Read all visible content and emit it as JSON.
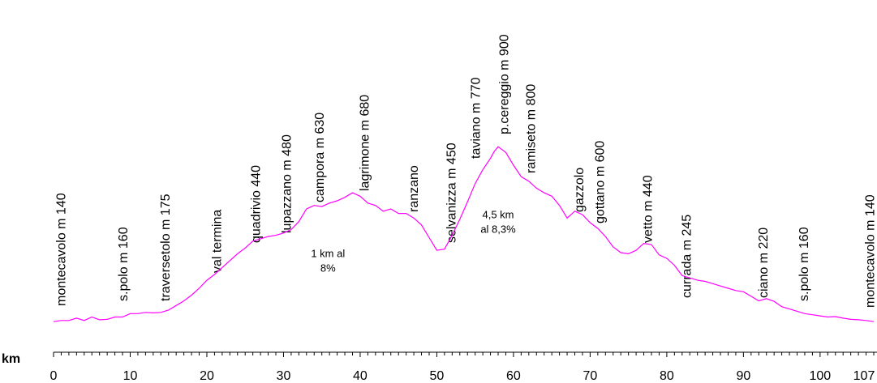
{
  "chart_data": {
    "type": "line",
    "x_unit_label": "km",
    "x_ticks": [
      0,
      10,
      20,
      30,
      40,
      50,
      60,
      70,
      80,
      90,
      100,
      107
    ],
    "xlim": [
      0,
      107
    ],
    "ylim": [
      0,
      1000
    ],
    "grid": false,
    "line_color": "#ff00ff",
    "series": [
      {
        "x": [
          0,
          1,
          2,
          3,
          4,
          5,
          6,
          7,
          8,
          9,
          10,
          11,
          12,
          13,
          14,
          15,
          16,
          17,
          18,
          19,
          20,
          21,
          22,
          23,
          24,
          25,
          26,
          27,
          28,
          29,
          30,
          31,
          32,
          33,
          34,
          35,
          36,
          37,
          38,
          39,
          40,
          41,
          42,
          43,
          44,
          45,
          46,
          47,
          48,
          49,
          50,
          51,
          52,
          53,
          54,
          55,
          56,
          57,
          57.5,
          58,
          59,
          60,
          61,
          62,
          63,
          64,
          65,
          66,
          67,
          68,
          69,
          70,
          71,
          72,
          73,
          74,
          75,
          76,
          77,
          78,
          79,
          80,
          81,
          82,
          83,
          84,
          85,
          86,
          87,
          88,
          89,
          90,
          91,
          92,
          93,
          94,
          95,
          96,
          97,
          98,
          99,
          100,
          101,
          102,
          103,
          104,
          105,
          106,
          107
        ],
        "y": [
          140,
          145,
          145,
          155,
          145,
          160,
          148,
          150,
          160,
          160,
          175,
          175,
          180,
          178,
          180,
          190,
          210,
          230,
          255,
          285,
          320,
          345,
          375,
          405,
          435,
          460,
          490,
          500,
          510,
          515,
          525,
          540,
          575,
          630,
          645,
          640,
          655,
          665,
          680,
          700,
          685,
          655,
          645,
          620,
          630,
          610,
          610,
          590,
          560,
          505,
          450,
          455,
          515,
          585,
          660,
          740,
          800,
          850,
          880,
          900,
          875,
          820,
          770,
          750,
          720,
          700,
          685,
          645,
          590,
          620,
          605,
          570,
          545,
          510,
          465,
          440,
          435,
          450,
          480,
          475,
          430,
          415,
          385,
          340,
          330,
          320,
          315,
          305,
          295,
          285,
          275,
          270,
          250,
          230,
          240,
          228,
          205,
          195,
          185,
          175,
          170,
          165,
          160,
          162,
          155,
          150,
          148,
          145,
          140
        ]
      }
    ],
    "places": [
      {
        "name": "montecavolo m 140",
        "km": 0.9
      },
      {
        "name": "s.polo  m 160",
        "km": 9
      },
      {
        "name": "traversetolo  m 175",
        "km": 14.5
      },
      {
        "name": "val termina",
        "km": 21.2
      },
      {
        "name": "quadrivio 440",
        "km": 26.3
      },
      {
        "name": "lupazzano  m  480",
        "km": 30.3
      },
      {
        "name": "campora m 630",
        "km": 34.6
      },
      {
        "name": "lagrimone m 680",
        "km": 40.5
      },
      {
        "name": "ranzano",
        "km": 46.9
      },
      {
        "name": "selvanizza m  450",
        "km": 51.8
      },
      {
        "name": "taviano m 770",
        "km": 55
      },
      {
        "name": "p.cereggio m 900",
        "km": 58.7
      },
      {
        "name": "ramiseto m 800",
        "km": 62.2
      },
      {
        "name": "gazzolo",
        "km": 68.5
      },
      {
        "name": "gottano m 600",
        "km": 71.2
      },
      {
        "name": "vetto m  440",
        "km": 77.4
      },
      {
        "name": "currada m  245",
        "km": 82.5
      },
      {
        "name": "ciano m  220",
        "km": 92.5
      },
      {
        "name": "s.polo m 160",
        "km": 97.8
      },
      {
        "name": "montecavolo m 140",
        "km": 106.4
      }
    ],
    "annotations": [
      {
        "lines": [
          "1 km  al",
          "8%"
        ],
        "km": 35.8,
        "elev": 420
      },
      {
        "lines": [
          "4,5 km",
          "al 8,3%"
        ],
        "km": 58,
        "elev": 590
      }
    ]
  }
}
